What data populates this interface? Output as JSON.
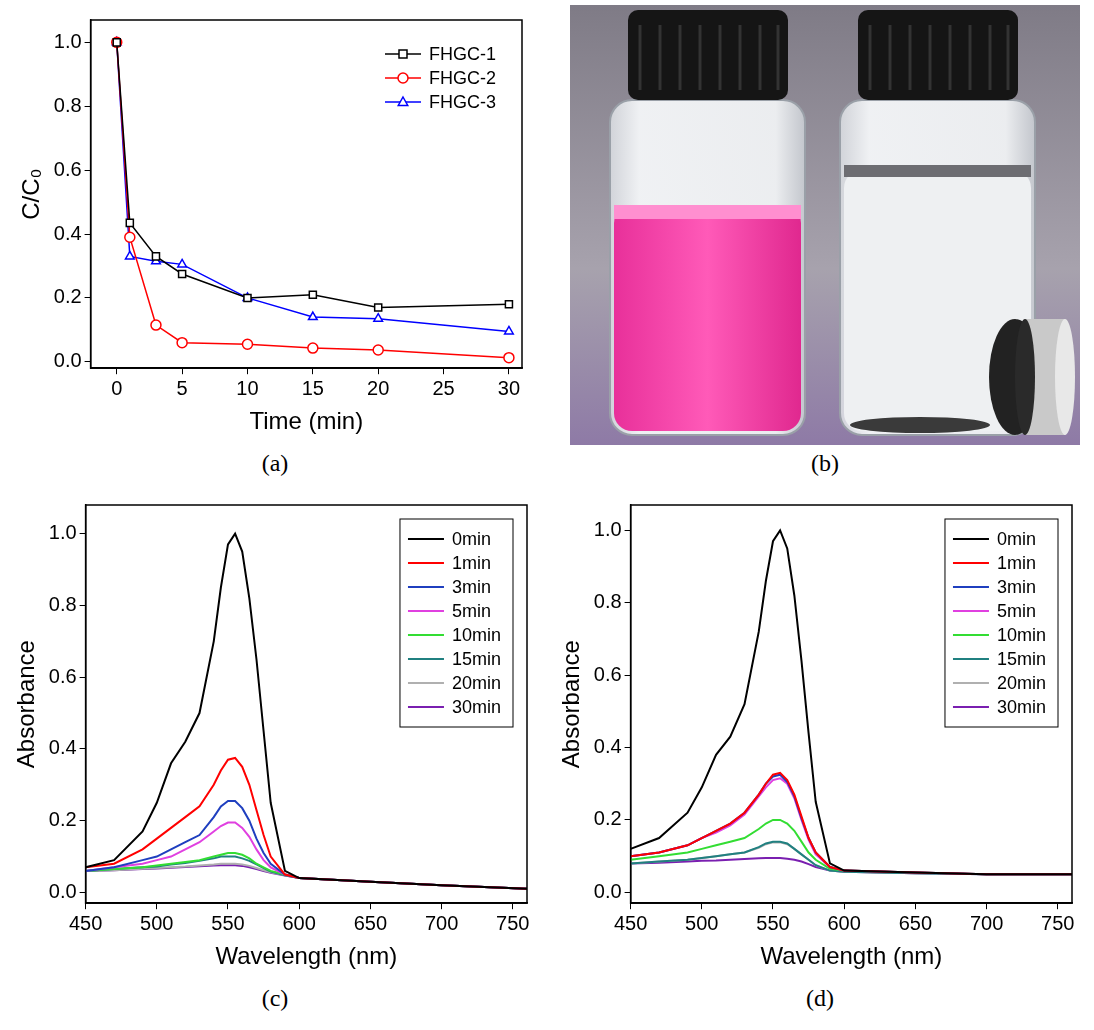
{
  "chart_data": [
    {
      "type": "line",
      "label": "(a)",
      "x_label": "Time (min)",
      "y_label": "C/C₀",
      "x": [
        0,
        1,
        3,
        5,
        10,
        15,
        20,
        30
      ],
      "series": [
        {
          "name": "FHGC-1",
          "color": "#000000",
          "marker": "square",
          "values": [
            1.0,
            0.435,
            0.33,
            0.275,
            0.2,
            0.21,
            0.17,
            0.18
          ]
        },
        {
          "name": "FHGC-2",
          "color": "#ff0000",
          "marker": "circle",
          "values": [
            1.0,
            0.39,
            0.115,
            0.06,
            0.055,
            0.043,
            0.037,
            0.013
          ]
        },
        {
          "name": "FHGC-3",
          "color": "#0000ff",
          "marker": "triangle",
          "values": [
            1.0,
            0.33,
            0.315,
            0.305,
            0.2,
            0.14,
            0.135,
            0.095
          ]
        }
      ],
      "xlim": [
        -2,
        31
      ],
      "xticks": [
        0,
        5,
        10,
        15,
        20,
        25,
        30
      ],
      "ylim": [
        -0.02,
        1.07
      ],
      "yticks": [
        {
          "value": 0,
          "label": "0.0"
        },
        0.2,
        0.4,
        0.6,
        0.8,
        {
          "value": 1,
          "label": "1.0"
        }
      ],
      "grid": false,
      "legend": "upper right"
    },
    {
      "type": "line",
      "label": "(c)",
      "x_label": "Wavelength (nm)",
      "y_label": "Absorbance",
      "x": [
        450,
        470,
        490,
        500,
        510,
        520,
        530,
        540,
        545,
        550,
        555,
        560,
        565,
        570,
        575,
        580,
        590,
        600,
        650,
        700,
        760
      ],
      "series": [
        {
          "name": "0min",
          "color": "#000000",
          "values": [
            0.07,
            0.09,
            0.17,
            0.25,
            0.36,
            0.42,
            0.5,
            0.7,
            0.85,
            0.97,
            1.0,
            0.95,
            0.82,
            0.65,
            0.45,
            0.25,
            0.06,
            0.04,
            0.03,
            0.02,
            0.01
          ]
        },
        {
          "name": "1min",
          "color": "#ff0000",
          "values": [
            0.07,
            0.08,
            0.12,
            0.15,
            0.18,
            0.21,
            0.24,
            0.3,
            0.34,
            0.37,
            0.375,
            0.35,
            0.3,
            0.23,
            0.16,
            0.1,
            0.05,
            0.04,
            0.03,
            0.02,
            0.01
          ]
        },
        {
          "name": "3min",
          "color": "#1f3fbf",
          "values": [
            0.06,
            0.07,
            0.09,
            0.1,
            0.12,
            0.14,
            0.16,
            0.21,
            0.24,
            0.255,
            0.255,
            0.235,
            0.2,
            0.15,
            0.11,
            0.08,
            0.05,
            0.04,
            0.03,
            0.02,
            0.01
          ]
        },
        {
          "name": "5min",
          "color": "#e040e0",
          "values": [
            0.06,
            0.07,
            0.08,
            0.09,
            0.1,
            0.12,
            0.14,
            0.17,
            0.185,
            0.195,
            0.195,
            0.18,
            0.155,
            0.12,
            0.09,
            0.07,
            0.05,
            0.04,
            0.03,
            0.02,
            0.01
          ]
        },
        {
          "name": "10min",
          "color": "#33dd33",
          "values": [
            0.06,
            0.065,
            0.07,
            0.075,
            0.08,
            0.085,
            0.09,
            0.1,
            0.105,
            0.11,
            0.11,
            0.105,
            0.095,
            0.08,
            0.07,
            0.06,
            0.05,
            0.04,
            0.03,
            0.02,
            0.01
          ]
        },
        {
          "name": "15min",
          "color": "#208080",
          "values": [
            0.06,
            0.065,
            0.07,
            0.072,
            0.078,
            0.082,
            0.088,
            0.095,
            0.1,
            0.1,
            0.1,
            0.095,
            0.088,
            0.078,
            0.068,
            0.058,
            0.048,
            0.04,
            0.03,
            0.02,
            0.01
          ]
        },
        {
          "name": "20min",
          "color": "#b0b0b0",
          "values": [
            0.06,
            0.062,
            0.066,
            0.068,
            0.07,
            0.072,
            0.075,
            0.078,
            0.08,
            0.08,
            0.08,
            0.078,
            0.074,
            0.068,
            0.062,
            0.056,
            0.048,
            0.04,
            0.03,
            0.02,
            0.01
          ]
        },
        {
          "name": "30min",
          "color": "#7a1fb0",
          "values": [
            0.06,
            0.062,
            0.065,
            0.067,
            0.069,
            0.071,
            0.073,
            0.075,
            0.076,
            0.076,
            0.076,
            0.074,
            0.07,
            0.065,
            0.06,
            0.055,
            0.047,
            0.04,
            0.03,
            0.02,
            0.01
          ]
        }
      ],
      "xlim": [
        450,
        760
      ],
      "xticks": [
        450,
        500,
        550,
        600,
        650,
        700,
        750
      ],
      "ylim": [
        -0.03,
        1.08
      ],
      "yticks": [
        {
          "value": 0,
          "label": "0.0"
        },
        0.2,
        0.4,
        0.6,
        0.8,
        {
          "value": 1,
          "label": "1.0"
        }
      ],
      "grid": false,
      "legend": "upper right"
    },
    {
      "type": "line",
      "label": "(d)",
      "x_label": "Wavelength (nm)",
      "y_label": "Absorbance",
      "x": [
        450,
        470,
        490,
        500,
        510,
        520,
        530,
        540,
        545,
        550,
        555,
        560,
        565,
        570,
        575,
        580,
        590,
        600,
        650,
        700,
        760
      ],
      "series": [
        {
          "name": "0min",
          "color": "#000000",
          "values": [
            0.12,
            0.15,
            0.22,
            0.29,
            0.38,
            0.43,
            0.52,
            0.72,
            0.86,
            0.97,
            1.0,
            0.95,
            0.82,
            0.64,
            0.44,
            0.25,
            0.08,
            0.06,
            0.055,
            0.05,
            0.05
          ]
        },
        {
          "name": "1min",
          "color": "#ff0000",
          "values": [
            0.1,
            0.11,
            0.13,
            0.15,
            0.17,
            0.19,
            0.22,
            0.27,
            0.3,
            0.325,
            0.33,
            0.31,
            0.27,
            0.21,
            0.15,
            0.11,
            0.07,
            0.06,
            0.055,
            0.05,
            0.05
          ]
        },
        {
          "name": "3min",
          "color": "#1f3fbf",
          "values": [
            0.1,
            0.11,
            0.13,
            0.15,
            0.17,
            0.19,
            0.22,
            0.27,
            0.3,
            0.32,
            0.325,
            0.305,
            0.265,
            0.205,
            0.15,
            0.11,
            0.07,
            0.06,
            0.055,
            0.05,
            0.05
          ]
        },
        {
          "name": "5min",
          "color": "#e040e0",
          "values": [
            0.1,
            0.11,
            0.13,
            0.15,
            0.165,
            0.185,
            0.215,
            0.265,
            0.29,
            0.31,
            0.315,
            0.3,
            0.26,
            0.2,
            0.145,
            0.105,
            0.07,
            0.06,
            0.055,
            0.05,
            0.05
          ]
        },
        {
          "name": "10min",
          "color": "#33dd33",
          "values": [
            0.09,
            0.1,
            0.11,
            0.12,
            0.13,
            0.14,
            0.15,
            0.175,
            0.19,
            0.2,
            0.2,
            0.19,
            0.17,
            0.14,
            0.11,
            0.09,
            0.065,
            0.06,
            0.055,
            0.05,
            0.05
          ]
        },
        {
          "name": "15min",
          "color": "#208080",
          "values": [
            0.08,
            0.085,
            0.09,
            0.095,
            0.1,
            0.105,
            0.11,
            0.125,
            0.135,
            0.14,
            0.14,
            0.135,
            0.12,
            0.105,
            0.09,
            0.075,
            0.06,
            0.057,
            0.053,
            0.05,
            0.05
          ]
        },
        {
          "name": "20min",
          "color": "#b0b0b0",
          "values": [
            0.08,
            0.085,
            0.09,
            0.095,
            0.1,
            0.105,
            0.11,
            0.123,
            0.133,
            0.138,
            0.138,
            0.133,
            0.12,
            0.105,
            0.09,
            0.075,
            0.06,
            0.057,
            0.053,
            0.05,
            0.05
          ]
        },
        {
          "name": "30min",
          "color": "#7a1fb0",
          "values": [
            0.08,
            0.082,
            0.085,
            0.087,
            0.088,
            0.09,
            0.092,
            0.094,
            0.095,
            0.095,
            0.095,
            0.093,
            0.09,
            0.085,
            0.078,
            0.07,
            0.06,
            0.057,
            0.053,
            0.05,
            0.05
          ]
        }
      ],
      "xlim": [
        450,
        760
      ],
      "xticks": [
        450,
        500,
        550,
        600,
        650,
        700,
        750
      ],
      "ylim": [
        -0.03,
        1.07
      ],
      "yticks": [
        {
          "value": 0,
          "label": "0.0"
        },
        0.2,
        0.4,
        0.6,
        0.8,
        {
          "value": 1,
          "label": "1.0"
        }
      ],
      "grid": false,
      "legend": "upper right"
    }
  ],
  "photo": {
    "label": "(b)"
  }
}
